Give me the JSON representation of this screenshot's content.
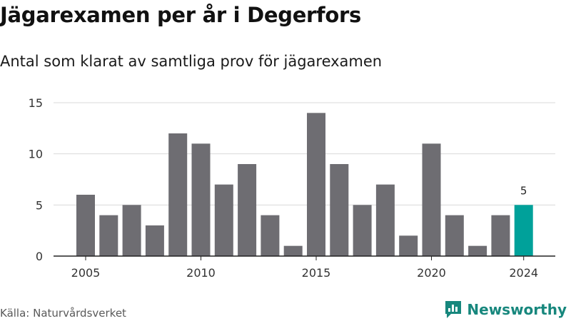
{
  "title": "Jägarexamen per år i Degerfors",
  "subtitle": "Antal som klarat av samtliga prov för jägarexamen",
  "source": "Källa: Naturvårdsverket",
  "brand": {
    "name": "Newsworthy",
    "icon": "bar-chart-speech-bubble-icon",
    "color": "#17877d"
  },
  "colors": {
    "bar": "#6e6d72",
    "highlight": "#00a19a",
    "grid": "#d9d9d9",
    "axis": "#222222"
  },
  "chart_data": {
    "type": "bar",
    "categories": [
      "2005",
      "2006",
      "2007",
      "2008",
      "2009",
      "2010",
      "2011",
      "2012",
      "2013",
      "2014",
      "2015",
      "2016",
      "2017",
      "2018",
      "2019",
      "2020",
      "2021",
      "2022",
      "2023",
      "2024"
    ],
    "values": [
      6,
      4,
      5,
      3,
      12,
      11,
      7,
      9,
      4,
      1,
      14,
      9,
      5,
      7,
      2,
      11,
      4,
      1,
      4,
      5
    ],
    "highlight_category": "2024",
    "data_labels": [
      {
        "category": "2024",
        "text": "5"
      }
    ],
    "x_tick_labels": [
      "2005",
      "2010",
      "2015",
      "2020",
      "2024"
    ],
    "y_ticks": [
      0,
      5,
      10,
      15
    ],
    "ylim": [
      0,
      15
    ],
    "grid": true,
    "xlabel": "",
    "ylabel": ""
  }
}
